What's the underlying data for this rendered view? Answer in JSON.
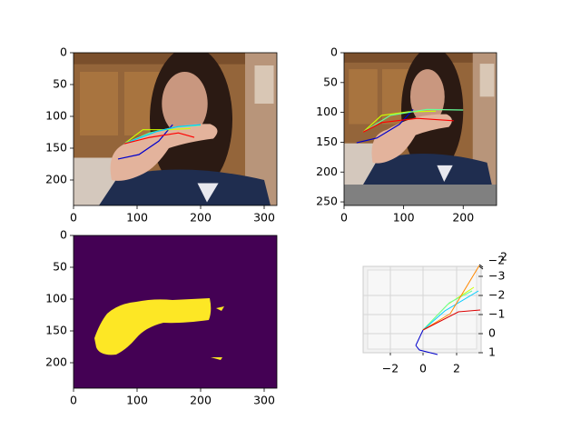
{
  "chart_data": [
    {
      "type": "image",
      "xlim": [
        0,
        320
      ],
      "ylim": [
        240,
        0
      ],
      "xticks": [
        0,
        100,
        200,
        300
      ],
      "yticks": [
        0,
        50,
        100,
        150,
        200
      ],
      "lines": [
        {
          "color": "#0000cc",
          "x": [
            70,
            103,
            134,
            156
          ],
          "y": [
            167,
            160,
            139,
            113
          ]
        },
        {
          "color": "#ccff00",
          "x": [
            80,
            109,
            149,
            184
          ],
          "y": [
            143,
            121,
            121,
            119
          ]
        },
        {
          "color": "#66ff99",
          "x": [
            80,
            120,
            160,
            200
          ],
          "y": [
            143,
            126,
            117,
            114
          ]
        },
        {
          "color": "#00ccff",
          "x": [
            80,
            130,
            165,
            200
          ],
          "y": [
            143,
            124,
            116,
            113
          ]
        },
        {
          "color": "#ff0000",
          "x": [
            80,
            120,
            165,
            190
          ],
          "y": [
            143,
            133,
            126,
            133
          ]
        }
      ]
    },
    {
      "type": "image",
      "xlim": [
        0,
        256
      ],
      "ylim": [
        256,
        0
      ],
      "xticks": [
        0,
        100,
        200
      ],
      "yticks": [
        0,
        50,
        100,
        150,
        200,
        250
      ],
      "lines": [
        {
          "color": "#0000cc",
          "x": [
            21,
            55,
            93,
            116
          ],
          "y": [
            151,
            143,
            120,
            95
          ]
        },
        {
          "color": "#ccff00",
          "x": [
            32,
            63,
            108,
            154
          ],
          "y": [
            133,
            105,
            99,
            98
          ]
        },
        {
          "color": "#66ff99",
          "x": [
            32,
            78,
            139,
            200
          ],
          "y": [
            133,
            105,
            95,
            96
          ]
        },
        {
          "color": "#ff0000",
          "x": [
            32,
            63,
            123,
            184
          ],
          "y": [
            133,
            117,
            110,
            114
          ]
        }
      ]
    },
    {
      "type": "mask",
      "xlim": [
        0,
        320
      ],
      "ylim": [
        240,
        0
      ],
      "xticks": [
        0,
        100,
        200,
        300
      ],
      "yticks": [
        0,
        50,
        100,
        150,
        200
      ]
    },
    {
      "type": "3d",
      "xticks": [
        {
          "value": -2,
          "label": "−2"
        },
        0,
        2
      ],
      "zticks": [
        1,
        0,
        {
          "value": -1,
          "label": "−1"
        },
        {
          "value": -2,
          "label": "−2"
        },
        {
          "value": -3,
          "label": "−3"
        }
      ],
      "yticks": [
        {
          "value": -2,
          "label": "−2"
        },
        2
      ]
    }
  ]
}
